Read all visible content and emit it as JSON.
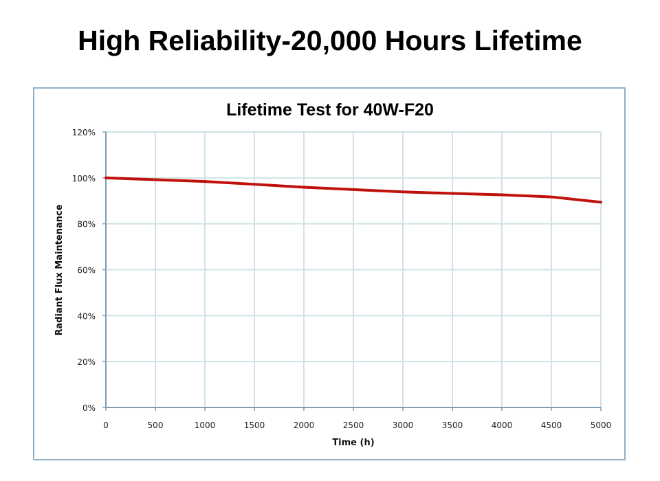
{
  "page": {
    "title": "High Reliability-20,000 Hours Lifetime"
  },
  "chart_data": {
    "type": "line",
    "title": "Lifetime Test for 40W-F20",
    "xlabel": "Time (h)",
    "ylabel": "Radiant Flux Maintenance",
    "xlim": [
      0,
      5000
    ],
    "ylim": [
      0,
      120
    ],
    "x_ticks": [
      "0",
      "500",
      "1000",
      "1500",
      "2000",
      "2500",
      "3000",
      "3500",
      "4000",
      "4500",
      "5000"
    ],
    "y_ticks": [
      "0%",
      "20%",
      "40%",
      "60%",
      "80%",
      "100%",
      "120%"
    ],
    "grid": true,
    "series": [
      {
        "name": "Radiant Flux Maintenance",
        "color": "#c0120c",
        "x": [
          0,
          500,
          1000,
          1500,
          2000,
          2500,
          3000,
          3500,
          4000,
          4500,
          5000
        ],
        "y": [
          100,
          99.2,
          98.4,
          97.2,
          95.9,
          94.9,
          93.9,
          93.2,
          92.6,
          91.7,
          89.4
        ]
      }
    ]
  }
}
